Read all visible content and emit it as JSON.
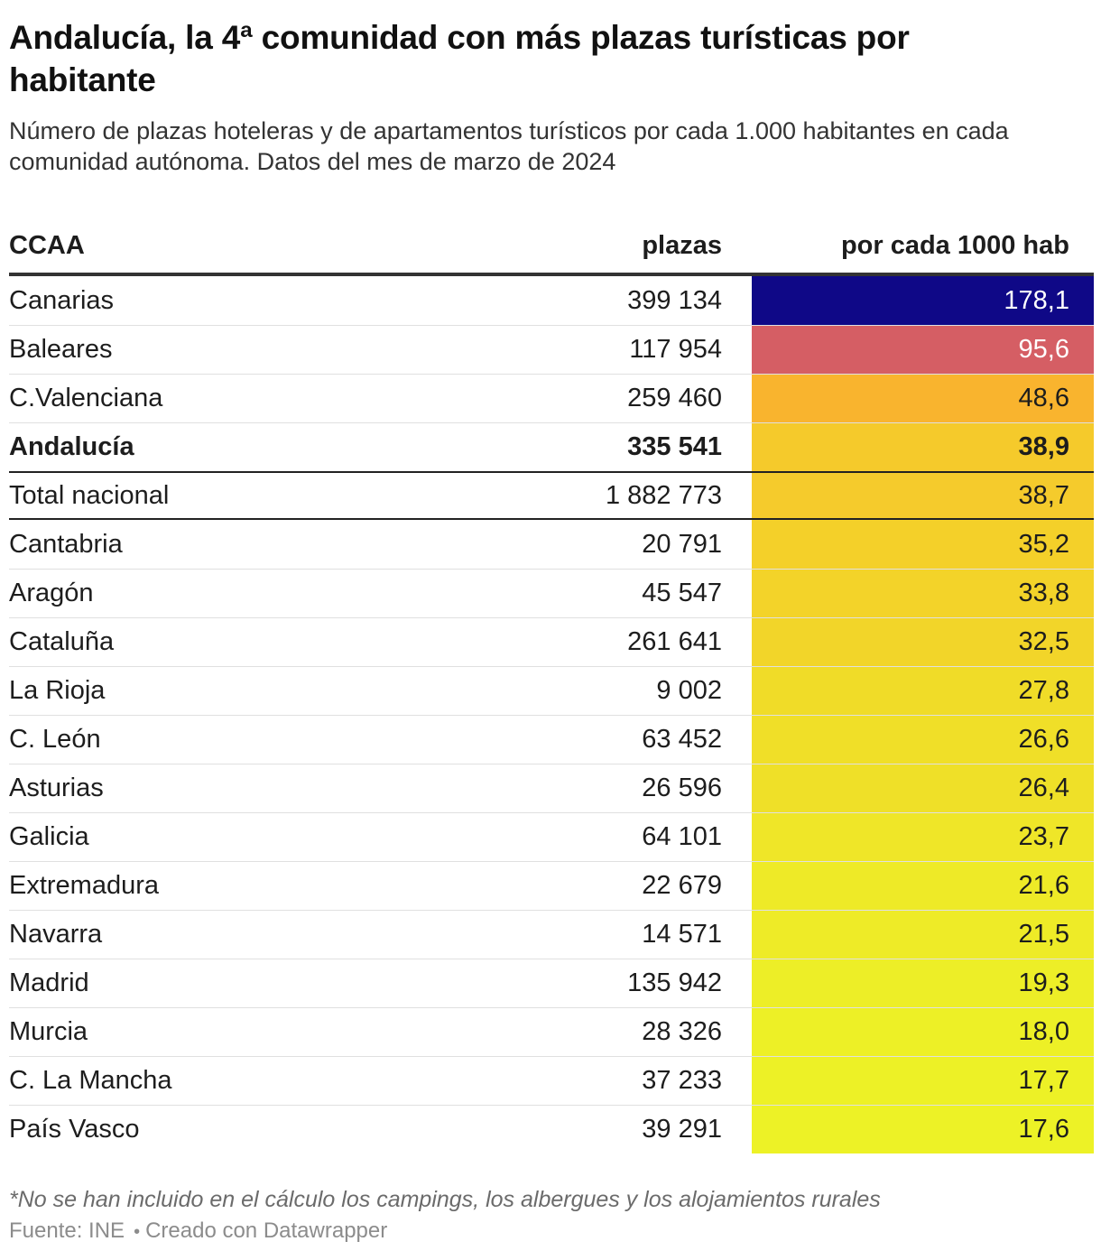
{
  "header": {
    "title": "Andalucía, la 4ª comunidad con más plazas turísticas por habitante",
    "subtitle": "Número de plazas hoteleras y de apartamentos turísticos por cada 1.000 habitantes en cada comunidad autónoma. Datos del mes de marzo de 2024"
  },
  "table": {
    "columns": [
      "CCAA",
      "plazas",
      "por cada 1000 hab"
    ],
    "rows": [
      {
        "ccaa": "Canarias",
        "plazas": "399 134",
        "per_1000": "178,1",
        "cell_color": "#0f0887",
        "value_color": "#ffffff",
        "bold": false,
        "total": false
      },
      {
        "ccaa": "Baleares",
        "plazas": "117 954",
        "per_1000": "95,6",
        "cell_color": "#d55e64",
        "value_color": "#ffffff",
        "bold": false,
        "total": false
      },
      {
        "ccaa": "C.Valenciana",
        "plazas": "259 460",
        "per_1000": "48,6",
        "cell_color": "#f9b42e",
        "value_color": "#1d1d1d",
        "bold": false,
        "total": false
      },
      {
        "ccaa": "Andalucía",
        "plazas": "335 541",
        "per_1000": "38,9",
        "cell_color": "#f5ca2b",
        "value_color": "#1d1d1d",
        "bold": true,
        "total": false
      },
      {
        "ccaa": "Total nacional",
        "plazas": "1 882 773",
        "per_1000": "38,7",
        "cell_color": "#f5cb2c",
        "value_color": "#1d1d1d",
        "bold": false,
        "total": true
      },
      {
        "ccaa": "Cantabria",
        "plazas": "20 791",
        "per_1000": "35,2",
        "cell_color": "#f4d029",
        "value_color": "#1d1d1d",
        "bold": false,
        "total": false
      },
      {
        "ccaa": "Aragón",
        "plazas": "45 547",
        "per_1000": "33,8",
        "cell_color": "#f3d329",
        "value_color": "#1d1d1d",
        "bold": false,
        "total": false
      },
      {
        "ccaa": "Cataluña",
        "plazas": "261 641",
        "per_1000": "32,5",
        "cell_color": "#f2d529",
        "value_color": "#1d1d1d",
        "bold": false,
        "total": false
      },
      {
        "ccaa": "La Rioja",
        "plazas": "9 002",
        "per_1000": "27,8",
        "cell_color": "#f0dc28",
        "value_color": "#1d1d1d",
        "bold": false,
        "total": false
      },
      {
        "ccaa": "C. León",
        "plazas": "63 452",
        "per_1000": "26,6",
        "cell_color": "#f0df28",
        "value_color": "#1d1d1d",
        "bold": false,
        "total": false
      },
      {
        "ccaa": "Asturias",
        "plazas": "26 596",
        "per_1000": "26,4",
        "cell_color": "#efe028",
        "value_color": "#1d1d1d",
        "bold": false,
        "total": false
      },
      {
        "ccaa": "Galicia",
        "plazas": "64 101",
        "per_1000": "23,7",
        "cell_color": "#efe628",
        "value_color": "#1d1d1d",
        "bold": false,
        "total": false
      },
      {
        "ccaa": "Extremadura",
        "plazas": "22 679",
        "per_1000": "21,6",
        "cell_color": "#eeea27",
        "value_color": "#1d1d1d",
        "bold": false,
        "total": false
      },
      {
        "ccaa": "Navarra",
        "plazas": "14 571",
        "per_1000": "21,5",
        "cell_color": "#eeeb27",
        "value_color": "#1d1d1d",
        "bold": false,
        "total": false
      },
      {
        "ccaa": "Madrid",
        "plazas": "135 942",
        "per_1000": "19,3",
        "cell_color": "#edee27",
        "value_color": "#1d1d1d",
        "bold": false,
        "total": false
      },
      {
        "ccaa": "Murcia",
        "plazas": "28 326",
        "per_1000": "18,0",
        "cell_color": "#edf026",
        "value_color": "#1d1d1d",
        "bold": false,
        "total": false
      },
      {
        "ccaa": "C. La Mancha",
        "plazas": "37 233",
        "per_1000": "17,7",
        "cell_color": "#edf126",
        "value_color": "#1d1d1d",
        "bold": false,
        "total": false
      },
      {
        "ccaa": "País Vasco",
        "plazas": "39 291",
        "per_1000": "17,6",
        "cell_color": "#edf226",
        "value_color": "#1d1d1d",
        "bold": false,
        "total": false
      }
    ]
  },
  "footer": {
    "note": "*No se han incluido en el cálculo los campings, los albergues y los alojamientos rurales",
    "source": "Fuente: INE",
    "separator": "•",
    "credit": "Creado con Datawrapper"
  },
  "chart_data": {
    "type": "table",
    "subtype": "heatmap-column",
    "title": "Andalucía, la 4ª comunidad con más plazas turísticas por habitante",
    "subtitle": "Número de plazas hoteleras y de apartamentos turísticos por cada 1.000 habitantes en cada comunidad autónoma. Datos del mes de marzo de 2024",
    "columns": [
      "CCAA",
      "plazas",
      "por cada 1000 hab"
    ],
    "rows": [
      [
        "Canarias",
        399134,
        178.1
      ],
      [
        "Baleares",
        117954,
        95.6
      ],
      [
        "C.Valenciana",
        259460,
        48.6
      ],
      [
        "Andalucía",
        335541,
        38.9
      ],
      [
        "Total nacional",
        1882773,
        38.7
      ],
      [
        "Cantabria",
        20791,
        35.2
      ],
      [
        "Aragón",
        45547,
        33.8
      ],
      [
        "Cataluña",
        261641,
        32.5
      ],
      [
        "La Rioja",
        9002,
        27.8
      ],
      [
        "C. León",
        63452,
        26.6
      ],
      [
        "Asturias",
        26596,
        26.4
      ],
      [
        "Galicia",
        64101,
        23.7
      ],
      [
        "Extremadura",
        22679,
        21.6
      ],
      [
        "Navarra",
        14571,
        21.5
      ],
      [
        "Madrid",
        135942,
        19.3
      ],
      [
        "Murcia",
        28326,
        18.0
      ],
      [
        "C. La Mancha",
        37233,
        17.7
      ],
      [
        "País Vasco",
        39291,
        17.6
      ]
    ],
    "heatmap_column": "por cada 1000 hab",
    "color_scale": "plasma reversed (high = dark blue #0f0887, low = yellow #edf226)",
    "highlighted_row": "Andalucía",
    "note": "*No se han incluido en el cálculo los campings, los albergues y los alojamientos rurales",
    "source": "INE",
    "credit": "Creado con Datawrapper"
  }
}
